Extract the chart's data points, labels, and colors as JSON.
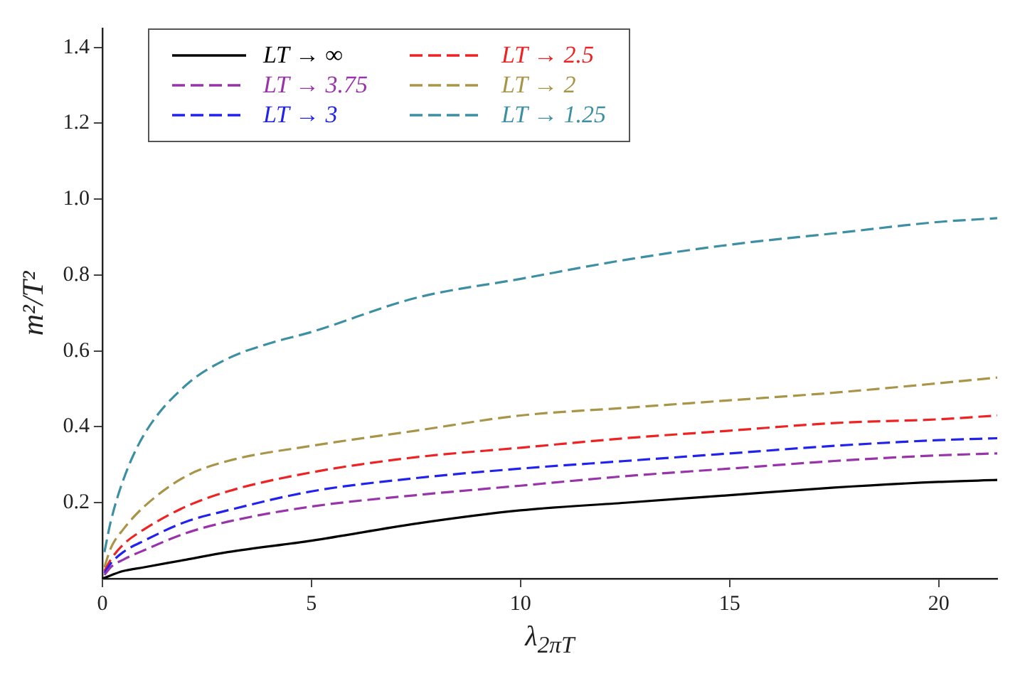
{
  "chart_data": {
    "type": "line",
    "xlabel": "λ$_{2πT}$",
    "ylabel": "m²/T²",
    "xlim": [
      0,
      21.4
    ],
    "ylim": [
      0,
      1.45
    ],
    "xticks": [
      0,
      5,
      10,
      15,
      20
    ],
    "yticks": [
      0.2,
      0.4,
      0.6,
      0.8,
      {
        "value": 1.0,
        "label": "1.0"
      },
      1.2,
      1.4
    ],
    "legend": "top left",
    "marker": "none",
    "series": [
      {
        "name": "LT → ∞",
        "color": "#000000",
        "line_style": "solid",
        "x": [
          0,
          0.5,
          1,
          2,
          3,
          5,
          7.5,
          10,
          12.5,
          15,
          17.5,
          20,
          21.4
        ],
        "values": [
          0,
          0.02,
          0.03,
          0.05,
          0.07,
          0.1,
          0.145,
          0.18,
          0.2,
          0.22,
          0.24,
          0.255,
          0.26
        ]
      },
      {
        "name": "LT → 3.75",
        "color": "#9933aa",
        "line_style": "dashed",
        "x": [
          0.05,
          0.2,
          0.5,
          1,
          2,
          3,
          5,
          7.5,
          10,
          12.5,
          15,
          17.5,
          20,
          21.4
        ],
        "values": [
          0.01,
          0.03,
          0.05,
          0.075,
          0.12,
          0.15,
          0.19,
          0.22,
          0.245,
          0.27,
          0.29,
          0.31,
          0.325,
          0.33
        ]
      },
      {
        "name": "LT → 3",
        "color": "#2222ee",
        "line_style": "dashed",
        "x": [
          0.05,
          0.2,
          0.5,
          1,
          2,
          3,
          5,
          7.5,
          10,
          12.5,
          15,
          17.5,
          20,
          21.4
        ],
        "values": [
          0.015,
          0.04,
          0.07,
          0.1,
          0.15,
          0.18,
          0.23,
          0.265,
          0.29,
          0.31,
          0.33,
          0.35,
          0.365,
          0.37
        ]
      },
      {
        "name": "LT → 2.5",
        "color": "#ee2222",
        "line_style": "dashed",
        "x": [
          0.05,
          0.2,
          0.5,
          1,
          2,
          3,
          5,
          7.5,
          10,
          12.5,
          15,
          17.5,
          20,
          21.4
        ],
        "values": [
          0.02,
          0.05,
          0.09,
          0.13,
          0.19,
          0.23,
          0.28,
          0.32,
          0.345,
          0.37,
          0.39,
          0.41,
          0.42,
          0.43
        ]
      },
      {
        "name": "LT → 2",
        "color": "#a89548",
        "line_style": "dashed",
        "x": [
          0.05,
          0.2,
          0.5,
          1,
          2,
          3,
          5,
          7.5,
          10,
          12.5,
          15,
          17.5,
          20,
          21.4
        ],
        "values": [
          0.03,
          0.08,
          0.13,
          0.19,
          0.27,
          0.31,
          0.35,
          0.39,
          0.43,
          0.45,
          0.47,
          0.49,
          0.515,
          0.53
        ]
      },
      {
        "name": "LT → 1.25",
        "color": "#3d8fa3",
        "line_style": "dashed",
        "x": [
          0.05,
          0.2,
          0.5,
          1,
          2,
          3,
          4,
          5,
          7.5,
          10,
          12.5,
          15,
          17.5,
          20,
          21.4
        ],
        "values": [
          0.07,
          0.15,
          0.26,
          0.38,
          0.51,
          0.58,
          0.62,
          0.65,
          0.74,
          0.79,
          0.84,
          0.88,
          0.91,
          0.94,
          0.95
        ]
      }
    ]
  }
}
